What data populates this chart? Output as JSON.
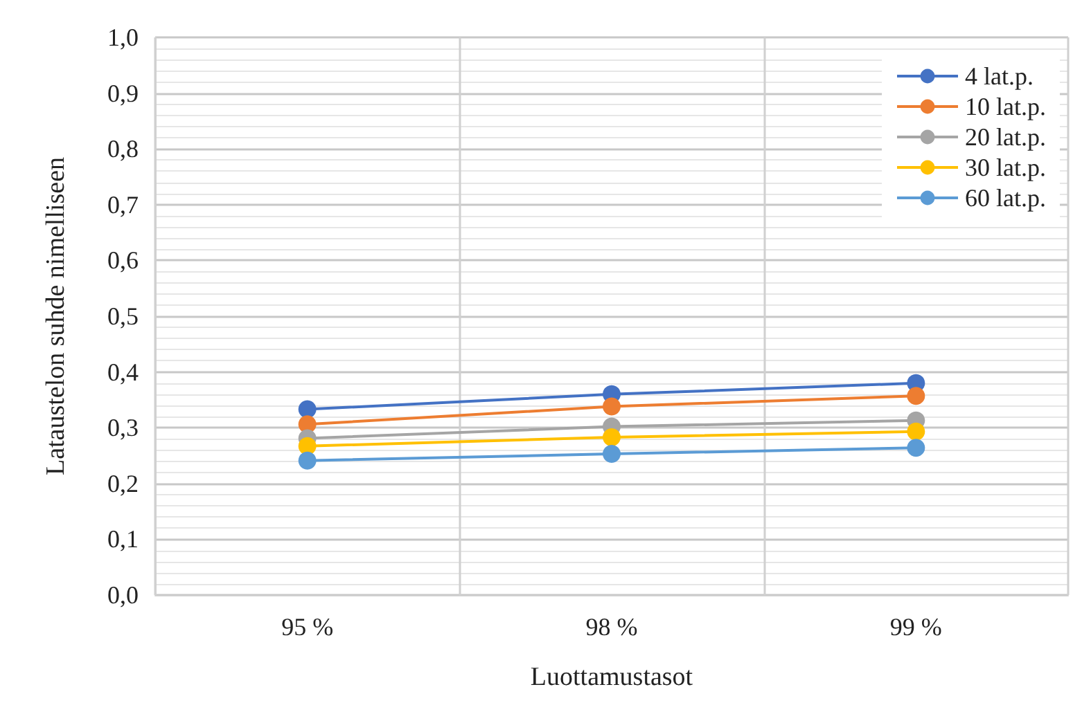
{
  "chart_data": {
    "type": "line",
    "xlabel": "Luottamustasot",
    "ylabel": "Lataustelon suhde nimelliseen",
    "categories": [
      "95 %",
      "98 %",
      "99 %"
    ],
    "series": [
      {
        "name": "4 lat.p.",
        "color": "#4472c4",
        "values": [
          0.333,
          0.36,
          0.38
        ]
      },
      {
        "name": "10 lat.p.",
        "color": "#ed7d31",
        "values": [
          0.306,
          0.338,
          0.357
        ]
      },
      {
        "name": "20 lat.p.",
        "color": "#a5a5a5",
        "values": [
          0.281,
          0.302,
          0.313
        ]
      },
      {
        "name": "30 lat.p.",
        "color": "#ffc000",
        "values": [
          0.267,
          0.283,
          0.293
        ]
      },
      {
        "name": "60 lat.p.",
        "color": "#5b9bd5",
        "values": [
          0.241,
          0.253,
          0.264
        ]
      }
    ],
    "ylim": [
      0,
      1
    ],
    "yticks": [
      {
        "value": 0,
        "label": "0,0"
      },
      {
        "value": 0.1,
        "label": "0,1"
      },
      {
        "value": 0.2,
        "label": "0,2"
      },
      {
        "value": 0.3,
        "label": "0,3"
      },
      {
        "value": 0.4,
        "label": "0,4"
      },
      {
        "value": 0.5,
        "label": "0,5"
      },
      {
        "value": 0.6,
        "label": "0,6"
      },
      {
        "value": 0.7,
        "label": "0,7"
      },
      {
        "value": 0.8,
        "label": "0,8"
      },
      {
        "value": 0.9,
        "label": "0,9"
      },
      {
        "value": 1,
        "label": "1,0"
      }
    ],
    "grid": true,
    "legend": "top right",
    "marker": "circle",
    "line_style": "solid"
  }
}
